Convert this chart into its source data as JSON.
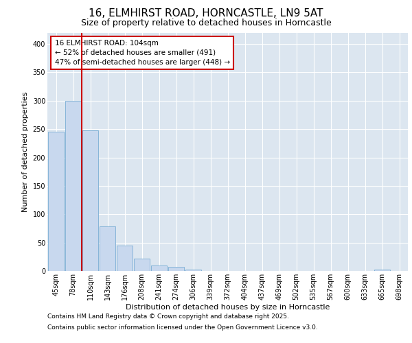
{
  "title1": "16, ELMHIRST ROAD, HORNCASTLE, LN9 5AT",
  "title2": "Size of property relative to detached houses in Horncastle",
  "xlabel": "Distribution of detached houses by size in Horncastle",
  "ylabel": "Number of detached properties",
  "categories": [
    "45sqm",
    "78sqm",
    "110sqm",
    "143sqm",
    "176sqm",
    "208sqm",
    "241sqm",
    "274sqm",
    "306sqm",
    "339sqm",
    "372sqm",
    "404sqm",
    "437sqm",
    "469sqm",
    "502sqm",
    "535sqm",
    "567sqm",
    "600sqm",
    "633sqm",
    "665sqm",
    "698sqm"
  ],
  "values": [
    245,
    300,
    248,
    78,
    45,
    22,
    10,
    7,
    2,
    0,
    0,
    0,
    0,
    0,
    0,
    0,
    0,
    0,
    0,
    2,
    0
  ],
  "bar_color": "#c8d8ee",
  "bar_edge_color": "#7aadd4",
  "vline_color": "#cc0000",
  "annotation_line1": "16 ELMHIRST ROAD: 104sqm",
  "annotation_line2": "← 52% of detached houses are smaller (491)",
  "annotation_line3": "47% of semi-detached houses are larger (448) →",
  "annotation_box_color": "#ffffff",
  "annotation_box_edge": "#cc0000",
  "ylim": [
    0,
    420
  ],
  "yticks": [
    0,
    50,
    100,
    150,
    200,
    250,
    300,
    350,
    400
  ],
  "fig_bg_color": "#ffffff",
  "plot_bg_color": "#dce6f0",
  "grid_color": "#ffffff",
  "footer1": "Contains HM Land Registry data © Crown copyright and database right 2025.",
  "footer2": "Contains public sector information licensed under the Open Government Licence v3.0.",
  "title1_fontsize": 11,
  "title2_fontsize": 9,
  "ylabel_fontsize": 8,
  "xlabel_fontsize": 8,
  "tick_fontsize": 7,
  "footer_fontsize": 6.5
}
